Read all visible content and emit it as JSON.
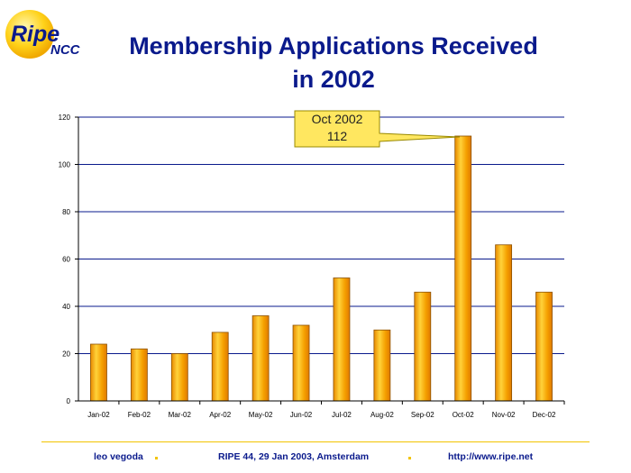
{
  "logo": {
    "word": "Ripe",
    "sub": "NCC"
  },
  "title_line1": "Membership Applications Received",
  "title_line2": "in 2002",
  "chart_data": {
    "type": "bar",
    "categories": [
      "Jan-02",
      "Feb-02",
      "Mar-02",
      "Apr-02",
      "May-02",
      "Jun-02",
      "Jul-02",
      "Aug-02",
      "Sep-02",
      "Oct-02",
      "Nov-02",
      "Dec-02"
    ],
    "values": [
      24,
      22,
      20,
      29,
      36,
      32,
      52,
      30,
      46,
      112,
      66,
      46
    ],
    "ylim": [
      0,
      120
    ],
    "yticks": [
      0,
      20,
      40,
      60,
      80,
      100,
      120
    ],
    "grid": true,
    "bar_color": "#f5a000",
    "grid_color": "#0a1a8c",
    "annotation": {
      "category": "Oct-02",
      "line1": "Oct 2002",
      "line2": "112"
    }
  },
  "footer": {
    "author": "leo vegoda",
    "event": "RIPE 44, 29 Jan 2003, Amsterdam",
    "url": "http://www.ripe.net"
  },
  "colors": {
    "title": "#0a1a8c",
    "accent": "#f2c400"
  }
}
